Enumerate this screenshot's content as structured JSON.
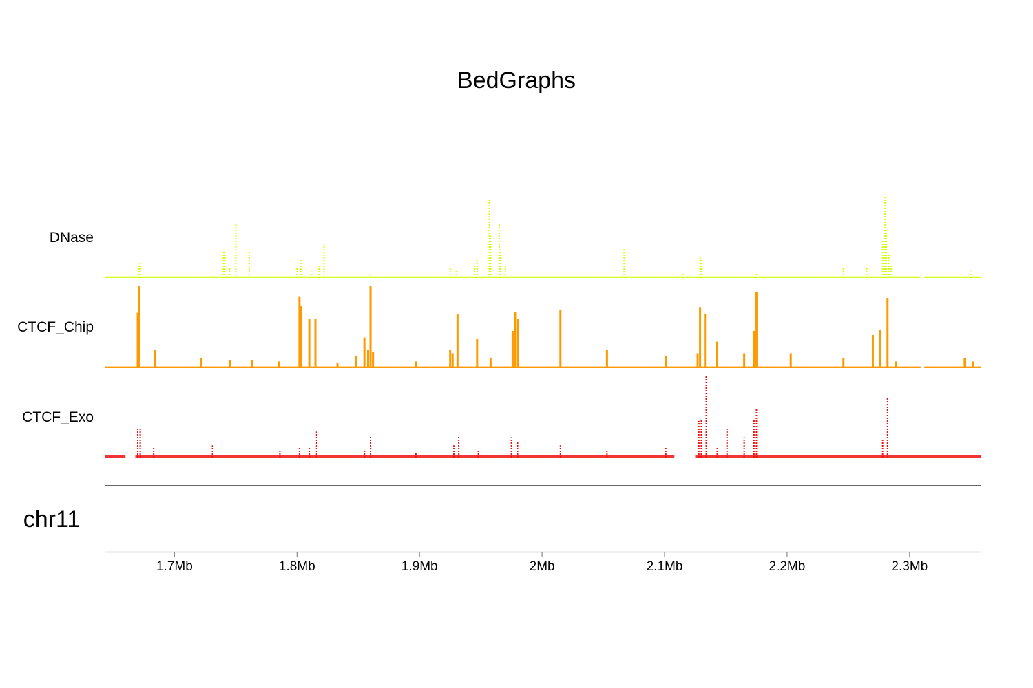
{
  "chart_data": {
    "type": "area",
    "title": "BedGraphs",
    "chromosome": "chr11",
    "x_unit": "Mb",
    "x_range": [
      1.643,
      2.358
    ],
    "x_ticks": [
      1.7,
      1.8,
      1.9,
      2.0,
      2.1,
      2.2,
      2.3
    ],
    "x_tick_labels": [
      "1.7Mb",
      "1.8Mb",
      "1.9Mb",
      "2Mb",
      "2.1Mb",
      "2.2Mb",
      "2.3Mb"
    ],
    "grid": false,
    "legend": "none",
    "series": [
      {
        "name": "DNase",
        "color": "#ccff00",
        "style": "dotted",
        "baseline": 0.02,
        "ylim": [
          0,
          1
        ],
        "gaps": [
          [
            2.309,
            2.312
          ]
        ],
        "peaks": [
          [
            1.671,
            0.18
          ],
          [
            1.672,
            0.2
          ],
          [
            1.74,
            0.32
          ],
          [
            1.741,
            0.35
          ],
          [
            1.745,
            0.12
          ],
          [
            1.75,
            0.68
          ],
          [
            1.761,
            0.35
          ],
          [
            1.8,
            0.12
          ],
          [
            1.803,
            0.22
          ],
          [
            1.812,
            0.08
          ],
          [
            1.818,
            0.15
          ],
          [
            1.822,
            0.43
          ],
          [
            1.86,
            0.05
          ],
          [
            1.925,
            0.13
          ],
          [
            1.93,
            0.1
          ],
          [
            1.945,
            0.18
          ],
          [
            1.947,
            0.23
          ],
          [
            1.957,
            0.98
          ],
          [
            1.958,
            0.52
          ],
          [
            1.965,
            0.68
          ],
          [
            1.966,
            0.35
          ],
          [
            1.97,
            0.15
          ],
          [
            2.067,
            0.37
          ],
          [
            2.115,
            0.07
          ],
          [
            2.129,
            0.27
          ],
          [
            2.13,
            0.22
          ],
          [
            2.175,
            0.07
          ],
          [
            2.246,
            0.12
          ],
          [
            2.265,
            0.12
          ],
          [
            2.278,
            0.45
          ],
          [
            2.28,
            1.0
          ],
          [
            2.281,
            0.62
          ],
          [
            2.283,
            0.3
          ],
          [
            2.285,
            0.15
          ],
          [
            2.35,
            0.08
          ]
        ]
      },
      {
        "name": "CTCF_Chip",
        "color": "#ff9900",
        "style": "solid",
        "baseline": 0.02,
        "ylim": [
          0,
          1
        ],
        "gaps": [
          [
            2.309,
            2.312
          ]
        ],
        "peaks": [
          [
            1.67,
            0.67
          ],
          [
            1.671,
            1.0
          ],
          [
            1.684,
            0.22
          ],
          [
            1.722,
            0.12
          ],
          [
            1.745,
            0.1
          ],
          [
            1.763,
            0.1
          ],
          [
            1.785,
            0.08
          ],
          [
            1.802,
            0.87
          ],
          [
            1.803,
            0.75
          ],
          [
            1.81,
            0.6
          ],
          [
            1.815,
            0.6
          ],
          [
            1.833,
            0.06
          ],
          [
            1.848,
            0.15
          ],
          [
            1.855,
            0.37
          ],
          [
            1.858,
            0.22
          ],
          [
            1.86,
            1.0
          ],
          [
            1.862,
            0.2
          ],
          [
            1.897,
            0.08
          ],
          [
            1.925,
            0.22
          ],
          [
            1.927,
            0.18
          ],
          [
            1.931,
            0.65
          ],
          [
            1.947,
            0.35
          ],
          [
            1.958,
            0.12
          ],
          [
            1.976,
            0.45
          ],
          [
            1.978,
            0.68
          ],
          [
            1.98,
            0.6
          ],
          [
            2.015,
            0.7
          ],
          [
            2.053,
            0.22
          ],
          [
            2.101,
            0.15
          ],
          [
            2.127,
            0.18
          ],
          [
            2.129,
            0.74
          ],
          [
            2.133,
            0.66
          ],
          [
            2.143,
            0.32
          ],
          [
            2.165,
            0.18
          ],
          [
            2.173,
            0.45
          ],
          [
            2.175,
            0.92
          ],
          [
            2.203,
            0.18
          ],
          [
            2.246,
            0.12
          ],
          [
            2.27,
            0.4
          ],
          [
            2.276,
            0.46
          ],
          [
            2.282,
            0.85
          ],
          [
            2.289,
            0.08
          ],
          [
            2.345,
            0.12
          ],
          [
            2.352,
            0.08
          ]
        ]
      },
      {
        "name": "CTCF_Exo",
        "color": "#ee1111",
        "style": "dotted",
        "baseline": 0.03,
        "ylim": [
          0,
          1
        ],
        "gaps": [
          [
            1.66,
            1.668
          ],
          [
            2.108,
            2.125
          ]
        ],
        "peaks": [
          [
            1.67,
            0.35
          ],
          [
            1.672,
            0.38
          ],
          [
            1.683,
            0.12
          ],
          [
            1.731,
            0.15
          ],
          [
            1.786,
            0.08
          ],
          [
            1.802,
            0.12
          ],
          [
            1.81,
            0.12
          ],
          [
            1.816,
            0.32
          ],
          [
            1.855,
            0.1
          ],
          [
            1.86,
            0.27
          ],
          [
            1.897,
            0.06
          ],
          [
            1.928,
            0.15
          ],
          [
            1.932,
            0.27
          ],
          [
            1.948,
            0.1
          ],
          [
            1.975,
            0.25
          ],
          [
            1.98,
            0.2
          ],
          [
            2.015,
            0.15
          ],
          [
            2.053,
            0.08
          ],
          [
            2.101,
            0.12
          ],
          [
            2.128,
            0.45
          ],
          [
            2.13,
            0.47
          ],
          [
            2.134,
            1.0
          ],
          [
            2.143,
            0.12
          ],
          [
            2.151,
            0.38
          ],
          [
            2.165,
            0.25
          ],
          [
            2.173,
            0.47
          ],
          [
            2.175,
            0.6
          ],
          [
            2.278,
            0.22
          ],
          [
            2.282,
            0.74
          ]
        ]
      }
    ]
  }
}
